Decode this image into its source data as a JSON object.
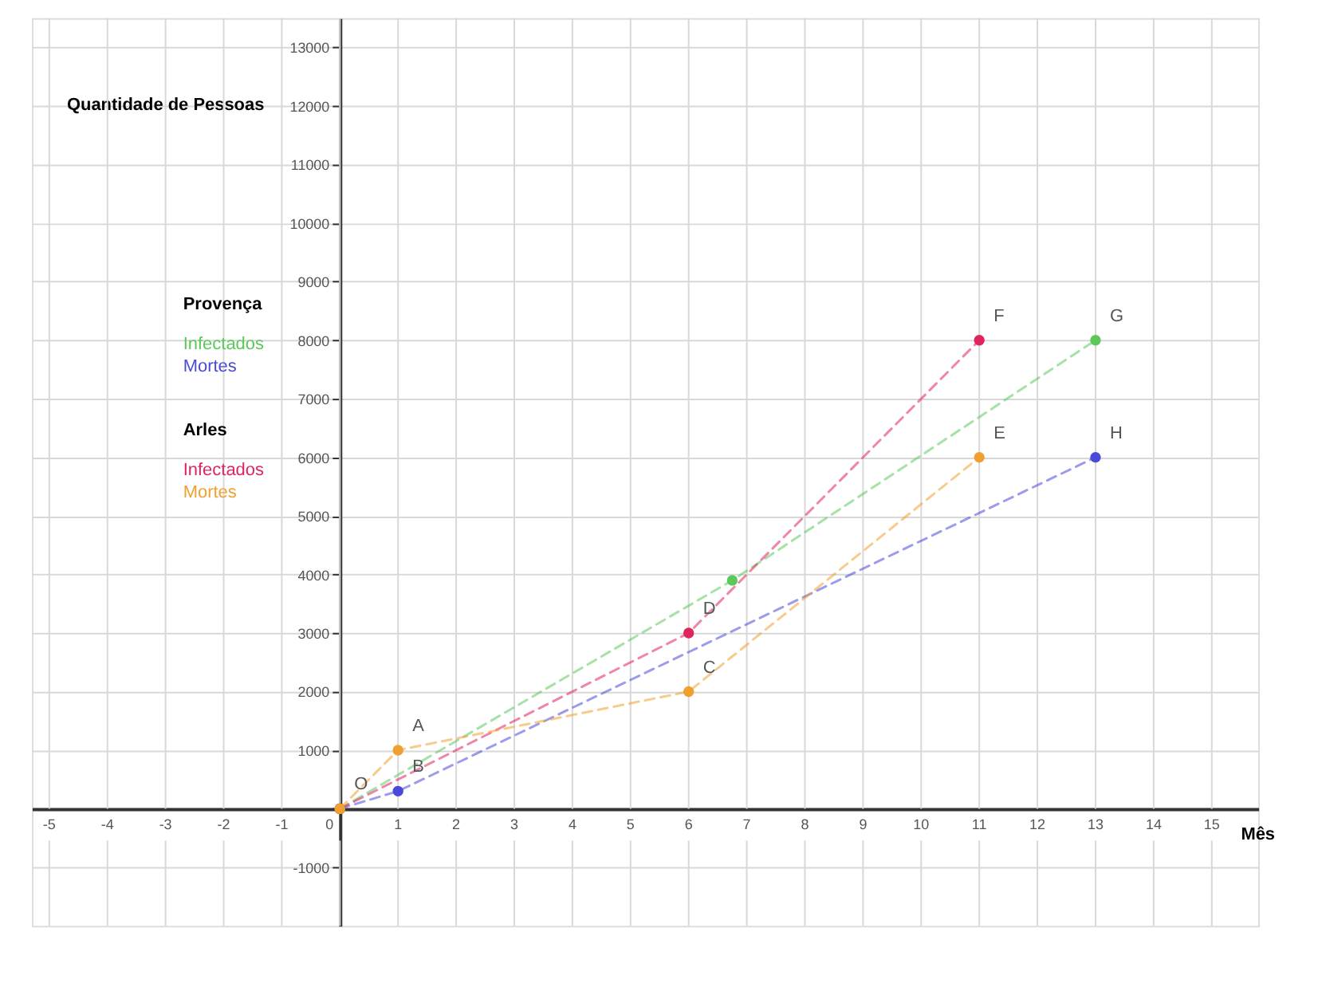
{
  "chart_data": {
    "type": "line",
    "xlabel": "Mês",
    "ylabel": "Quantidade de Pessoas",
    "xlim": [
      -5.3,
      15.8
    ],
    "ylim": [
      -2000,
      13500
    ],
    "xticks": [
      -5,
      -4,
      -3,
      -2,
      -1,
      0,
      1,
      2,
      3,
      4,
      5,
      6,
      7,
      8,
      9,
      10,
      11,
      12,
      13,
      14,
      15
    ],
    "yticks": [
      -1000,
      {
        "value": 0,
        "label": null
      },
      1000,
      2000,
      3000,
      4000,
      5000,
      6000,
      7000,
      8000,
      9000,
      10000,
      11000,
      12000,
      13000
    ],
    "grid": true,
    "marker": "circle",
    "legend": "top left",
    "series": [
      {
        "name": "Infectados",
        "color": "#5cc85c",
        "line_style": "dashed",
        "x": [
          0,
          6.75,
          13
        ],
        "values": [
          0,
          3900,
          8000
        ]
      },
      {
        "name": "Mortes",
        "color": "#4a4ad8",
        "line_style": "dashed",
        "x": [
          0,
          1,
          13
        ],
        "values": [
          0,
          300,
          6000
        ]
      },
      {
        "name": "Infectados",
        "color": "#e0245e",
        "line_style": "dashed",
        "x": [
          0,
          6,
          11
        ],
        "values": [
          0,
          3000,
          8000
        ]
      },
      {
        "name": "Mortes",
        "color": "#f0a030",
        "line_style": "dashed",
        "x": [
          0,
          1,
          6,
          11
        ],
        "values": [
          0,
          1000,
          2000,
          6000
        ]
      }
    ],
    "annotations": [
      "Provença",
      "Arles",
      {
        "text": "O",
        "x": 0,
        "y": 0
      },
      {
        "text": "A",
        "x": 1,
        "y": 1000
      },
      {
        "text": "B",
        "x": 1,
        "y": 300
      },
      {
        "text": "C",
        "x": 6,
        "y": 2000
      },
      {
        "text": "D",
        "x": 6,
        "y": 3000
      },
      {
        "text": "E",
        "x": 11,
        "y": 6000
      },
      {
        "text": "F",
        "x": 11,
        "y": 8000
      },
      {
        "text": "G",
        "x": 13,
        "y": 8000
      },
      {
        "text": "H",
        "x": 13,
        "y": 6000
      }
    ]
  }
}
